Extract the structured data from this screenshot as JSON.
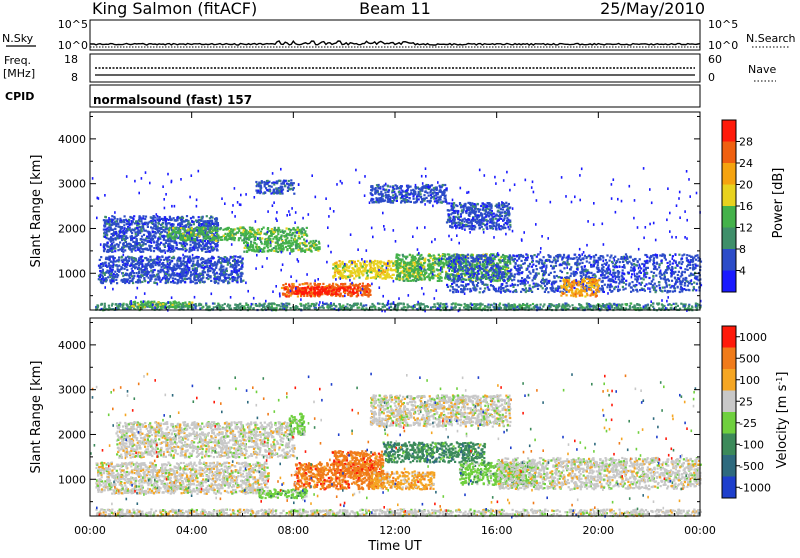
{
  "header": {
    "station": "King Salmon (fitACF)",
    "beam": "Beam 11",
    "date": "25/May/2010"
  },
  "status_panels": {
    "nsky_label": "N.Sky",
    "nsky_ticks": [
      "10^5",
      "10^0"
    ],
    "freq_label": "Freq.",
    "freq_unit": "[MHz]",
    "freq_ticks": [
      "18",
      "8"
    ],
    "cpid_label": "CPID",
    "nsearch_label": "N.Search",
    "nsearch_ticks": [
      "10^5",
      "10^0"
    ],
    "nave_label": "Nave",
    "nave_ticks": [
      "60",
      "0"
    ],
    "mode_text": "normalsound (fast) 157"
  },
  "chart_data": [
    {
      "type": "heatmap",
      "panel": "power",
      "ylabel": "Slant Range [km]",
      "xlabel": "",
      "yticks": [
        1000,
        2000,
        3000,
        4000
      ],
      "ylim": [
        180,
        4600
      ],
      "xlim": [
        0,
        24
      ],
      "colorbar": {
        "label": "Power [dB]",
        "ticks": [
          4,
          8,
          12,
          16,
          20,
          24,
          28
        ],
        "colors": [
          "#1a1aff",
          "#2c4cc8",
          "#3f8f6a",
          "#44b24a",
          "#e8d21e",
          "#f5a30f",
          "#f06010",
          "#ff1a0a"
        ]
      },
      "regions": [
        {
          "t0": 0.2,
          "t1": 24,
          "r0": 200,
          "r1": 350,
          "level": 2
        },
        {
          "t0": 0.3,
          "t1": 6,
          "r0": 800,
          "r1": 1400,
          "level": 1
        },
        {
          "t0": 0.5,
          "t1": 5,
          "r0": 1500,
          "r1": 2300,
          "level": 1
        },
        {
          "t0": 3,
          "t1": 8.5,
          "r0": 1750,
          "r1": 2050,
          "level": 3
        },
        {
          "t0": 6,
          "t1": 9,
          "r0": 1500,
          "r1": 1750,
          "level": 3
        },
        {
          "t0": 1.5,
          "t1": 4,
          "r0": 250,
          "r1": 400,
          "level": 3
        },
        {
          "t0": 7.5,
          "t1": 11,
          "r0": 500,
          "r1": 800,
          "level": 6
        },
        {
          "t0": 8,
          "t1": 10.5,
          "r0": 550,
          "r1": 720,
          "level": 7
        },
        {
          "t0": 9.5,
          "t1": 13,
          "r0": 900,
          "r1": 1300,
          "level": 4
        },
        {
          "t0": 12,
          "t1": 16.5,
          "r0": 850,
          "r1": 1450,
          "level": 3
        },
        {
          "t0": 14,
          "t1": 24,
          "r0": 600,
          "r1": 1450,
          "level": 1
        },
        {
          "t0": 11,
          "t1": 14,
          "r0": 2600,
          "r1": 3000,
          "level": 1
        },
        {
          "t0": 14,
          "t1": 16.5,
          "r0": 2000,
          "r1": 2600,
          "level": 1
        },
        {
          "t0": 6.5,
          "t1": 8,
          "r0": 2800,
          "r1": 3100,
          "level": 1
        },
        {
          "t0": 18.5,
          "t1": 20,
          "r0": 500,
          "r1": 900,
          "level": 5
        }
      ]
    },
    {
      "type": "heatmap",
      "panel": "velocity",
      "ylabel": "Slant Range [km]",
      "xlabel": "Time UT",
      "yticks": [
        1000,
        2000,
        3000,
        4000
      ],
      "ylim": [
        180,
        4600
      ],
      "xlim": [
        0,
        24
      ],
      "xticks": [
        "00:00",
        "04:00",
        "08:00",
        "12:00",
        "16:00",
        "20:00",
        "00:00"
      ],
      "colorbar": {
        "label": "Velocity [m s",
        "label_sup": "-1",
        "label_end": "]",
        "ticks": [
          1000,
          500,
          100,
          25,
          -25,
          -100,
          -500,
          -1000
        ],
        "colors": [
          "#1e3fcc",
          "#2e6a7e",
          "#3c8a5a",
          "#6fd03e",
          "#c8c8c8",
          "#f5a623",
          "#f07b1a",
          "#ff1a0a"
        ]
      },
      "regions": [
        {
          "t0": 0.2,
          "t1": 7,
          "r0": 700,
          "r1": 1400,
          "level": 4
        },
        {
          "t0": 1,
          "t1": 8,
          "r0": 1500,
          "r1": 2300,
          "level": 4
        },
        {
          "t0": 8,
          "t1": 11.5,
          "r0": 800,
          "r1": 1400,
          "level": 6
        },
        {
          "t0": 9.5,
          "t1": 11.5,
          "r0": 1100,
          "r1": 1650,
          "level": 6
        },
        {
          "t0": 11,
          "t1": 13.5,
          "r0": 800,
          "r1": 1200,
          "level": 5
        },
        {
          "t0": 11.5,
          "t1": 15.5,
          "r0": 1400,
          "r1": 1850,
          "level": 2
        },
        {
          "t0": 14.5,
          "t1": 17.5,
          "r0": 900,
          "r1": 1400,
          "level": 3
        },
        {
          "t0": 16,
          "t1": 24,
          "r0": 800,
          "r1": 1500,
          "level": 4
        },
        {
          "t0": 11,
          "t1": 16.5,
          "r0": 2200,
          "r1": 2900,
          "level": 4
        },
        {
          "t0": 0.2,
          "t1": 24,
          "r0": 200,
          "r1": 350,
          "level": 4
        },
        {
          "t0": 6.5,
          "t1": 8.5,
          "r0": 600,
          "r1": 800,
          "level": 3
        },
        {
          "t0": 7.8,
          "t1": 8.4,
          "r0": 2000,
          "r1": 2500,
          "level": 3
        }
      ]
    }
  ]
}
